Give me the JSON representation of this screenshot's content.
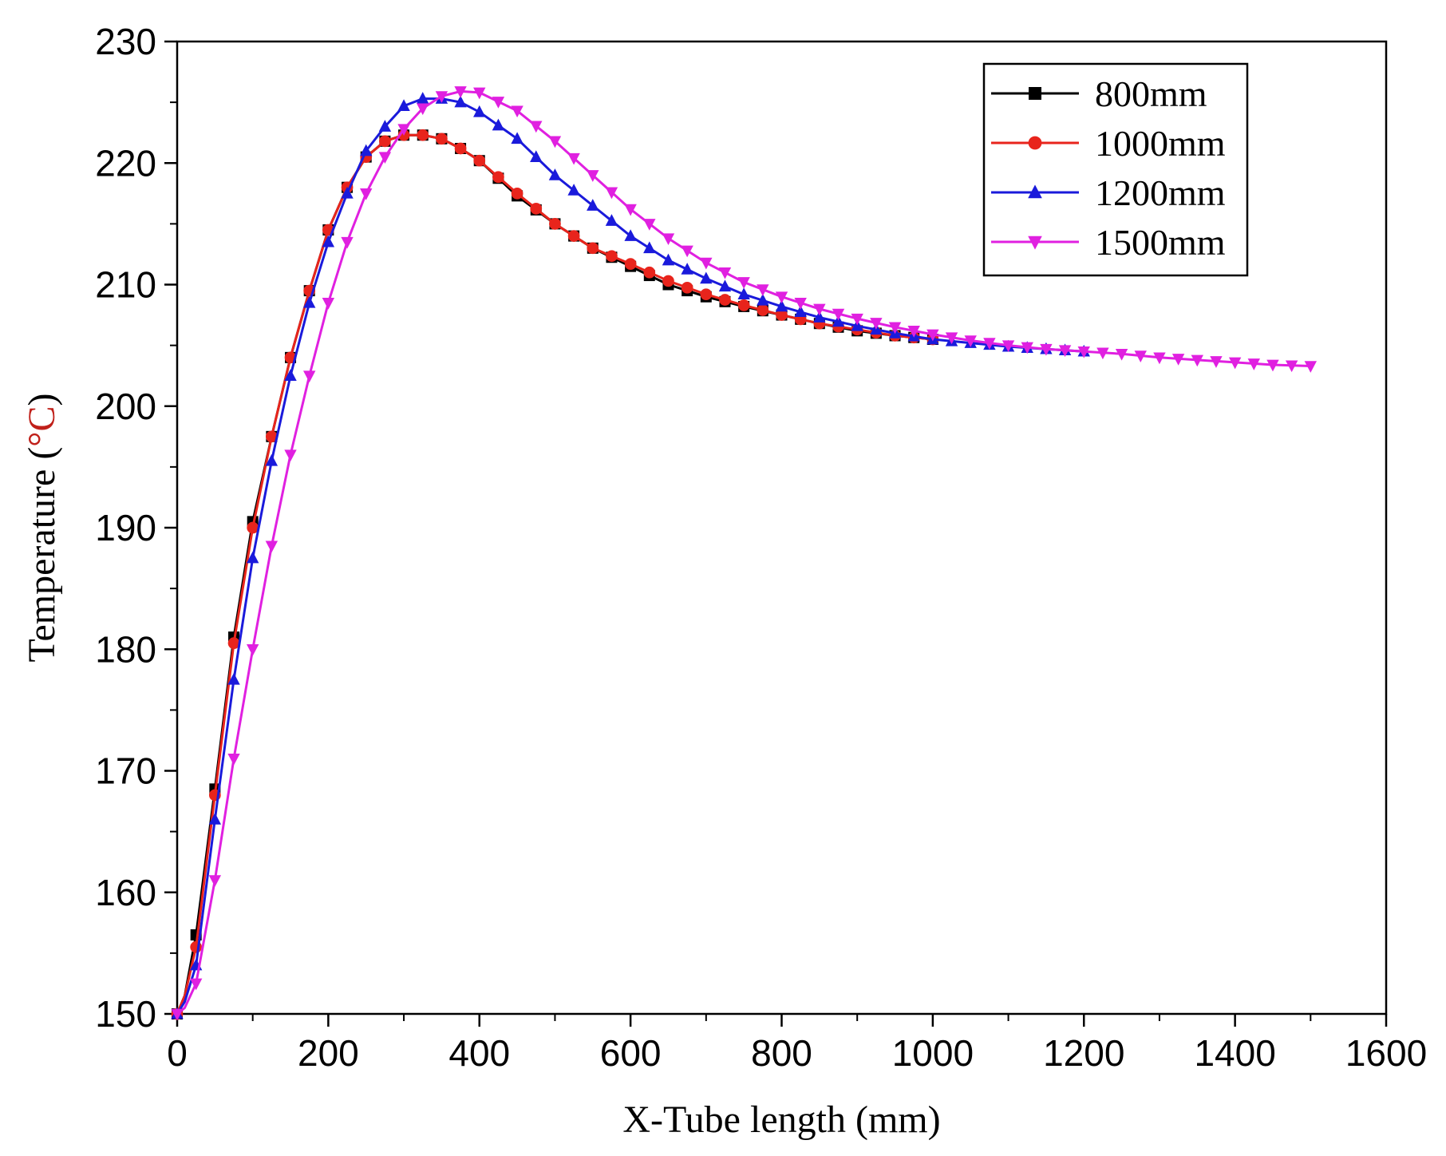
{
  "chart_data": {
    "type": "line",
    "title": "",
    "xlabel": "X-Tube length (mm)",
    "ylabel_prefix": "Temperature (",
    "ylabel_unit": "°C",
    "ylabel_suffix": ")",
    "xlim": [
      0,
      1600
    ],
    "ylim": [
      150,
      230
    ],
    "xticks": [
      0,
      200,
      400,
      600,
      800,
      1000,
      1200,
      1400,
      1600
    ],
    "yticks": [
      150,
      160,
      170,
      180,
      190,
      200,
      210,
      220,
      230
    ],
    "legend_position": "top-right",
    "series": [
      {
        "name": "800mm",
        "color": "#000000",
        "marker": "square",
        "points": [
          [
            0,
            150
          ],
          [
            10,
            151.5
          ],
          [
            25,
            156.5
          ],
          [
            50,
            168.5
          ],
          [
            75,
            181
          ],
          [
            100,
            190.5
          ],
          [
            125,
            197.5
          ],
          [
            150,
            204
          ],
          [
            175,
            209.5
          ],
          [
            200,
            214.5
          ],
          [
            225,
            218
          ],
          [
            250,
            220.5
          ],
          [
            275,
            221.8
          ],
          [
            300,
            222.3
          ],
          [
            325,
            222.3
          ],
          [
            350,
            222
          ],
          [
            375,
            221.2
          ],
          [
            400,
            220.2
          ],
          [
            450,
            217.3
          ],
          [
            500,
            215
          ],
          [
            550,
            213
          ],
          [
            600,
            211.5
          ],
          [
            650,
            210
          ],
          [
            700,
            209
          ],
          [
            750,
            208.2
          ],
          [
            800,
            207.5
          ],
          [
            850,
            206.8
          ],
          [
            900,
            206.2
          ],
          [
            950,
            205.8
          ],
          [
            1000,
            205.5
          ]
        ]
      },
      {
        "name": "1000mm",
        "color": "#e8241c",
        "marker": "circle",
        "points": [
          [
            0,
            150
          ],
          [
            10,
            151.5
          ],
          [
            25,
            155.5
          ],
          [
            50,
            168
          ],
          [
            75,
            180.5
          ],
          [
            100,
            190
          ],
          [
            125,
            197.5
          ],
          [
            150,
            204
          ],
          [
            175,
            209.5
          ],
          [
            200,
            214.5
          ],
          [
            225,
            218
          ],
          [
            250,
            220.5
          ],
          [
            275,
            221.8
          ],
          [
            300,
            222.3
          ],
          [
            325,
            222.3
          ],
          [
            350,
            222
          ],
          [
            375,
            221.2
          ],
          [
            400,
            220.2
          ],
          [
            450,
            217.5
          ],
          [
            500,
            215
          ],
          [
            550,
            213
          ],
          [
            600,
            211.7
          ],
          [
            650,
            210.3
          ],
          [
            700,
            209.2
          ],
          [
            750,
            208.3
          ],
          [
            800,
            207.5
          ],
          [
            850,
            206.8
          ],
          [
            900,
            206.3
          ],
          [
            950,
            205.8
          ],
          [
            1000,
            205.5
          ]
        ]
      },
      {
        "name": "1200mm",
        "color": "#1a1adb",
        "marker": "triangle-up",
        "points": [
          [
            0,
            150
          ],
          [
            10,
            151
          ],
          [
            25,
            154
          ],
          [
            50,
            166
          ],
          [
            75,
            177.5
          ],
          [
            100,
            187.5
          ],
          [
            125,
            195.5
          ],
          [
            150,
            202.5
          ],
          [
            175,
            208.5
          ],
          [
            200,
            213.5
          ],
          [
            225,
            217.5
          ],
          [
            250,
            221
          ],
          [
            275,
            223
          ],
          [
            300,
            224.7
          ],
          [
            325,
            225.3
          ],
          [
            350,
            225.3
          ],
          [
            375,
            225
          ],
          [
            400,
            224.2
          ],
          [
            450,
            222
          ],
          [
            500,
            219
          ],
          [
            550,
            216.5
          ],
          [
            600,
            214
          ],
          [
            650,
            212
          ],
          [
            700,
            210.5
          ],
          [
            750,
            209.2
          ],
          [
            800,
            208.2
          ],
          [
            850,
            207.3
          ],
          [
            900,
            206.6
          ],
          [
            950,
            206
          ],
          [
            1000,
            205.5
          ],
          [
            1050,
            205.2
          ],
          [
            1100,
            204.9
          ],
          [
            1150,
            204.7
          ],
          [
            1200,
            204.5
          ]
        ]
      },
      {
        "name": "1500mm",
        "color": "#e020e0",
        "marker": "triangle-down",
        "points": [
          [
            0,
            150
          ],
          [
            10,
            150.5
          ],
          [
            25,
            152.5
          ],
          [
            50,
            161
          ],
          [
            75,
            171
          ],
          [
            100,
            180
          ],
          [
            125,
            188.5
          ],
          [
            150,
            196
          ],
          [
            175,
            202.5
          ],
          [
            200,
            208.5
          ],
          [
            225,
            213.5
          ],
          [
            250,
            217.5
          ],
          [
            275,
            220.5
          ],
          [
            300,
            222.8
          ],
          [
            325,
            224.5
          ],
          [
            350,
            225.5
          ],
          [
            375,
            225.9
          ],
          [
            400,
            225.8
          ],
          [
            450,
            224.3
          ],
          [
            500,
            221.8
          ],
          [
            550,
            219
          ],
          [
            600,
            216.2
          ],
          [
            650,
            213.8
          ],
          [
            700,
            211.8
          ],
          [
            750,
            210.2
          ],
          [
            800,
            209
          ],
          [
            850,
            208
          ],
          [
            900,
            207.2
          ],
          [
            950,
            206.5
          ],
          [
            1000,
            205.9
          ],
          [
            1050,
            205.4
          ],
          [
            1100,
            205
          ],
          [
            1150,
            204.7
          ],
          [
            1200,
            204.5
          ],
          [
            1250,
            204.3
          ],
          [
            1300,
            204
          ],
          [
            1350,
            203.8
          ],
          [
            1400,
            203.6
          ],
          [
            1450,
            203.4
          ],
          [
            1500,
            203.3
          ]
        ]
      }
    ]
  }
}
